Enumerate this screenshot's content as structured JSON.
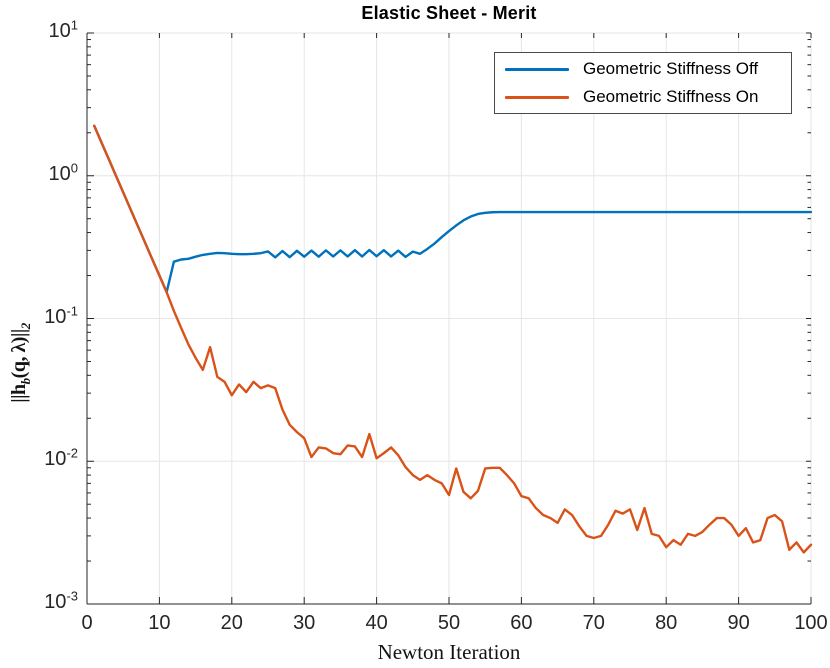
{
  "chart_data": {
    "type": "line",
    "title": "Elastic Sheet - Merit",
    "xlabel": "Newton Iteration",
    "ylabel": "||h_b(q, λ)||_2",
    "grid": true,
    "legend_position": "top-right",
    "x_axis": {
      "min": 0,
      "max": 100,
      "ticks": [
        0,
        10,
        20,
        30,
        40,
        50,
        60,
        70,
        80,
        90,
        100
      ]
    },
    "y_axis": {
      "scale": "log",
      "min": 0.001,
      "max": 10,
      "tick_exponents": [
        1,
        0,
        -1,
        -2,
        -3
      ]
    },
    "x_first": 1,
    "x_step": 1,
    "series": [
      {
        "name": "Geometric Stiffness Off",
        "color": "#0072BD",
        "values": [
          2.24,
          1.71,
          1.31,
          1.0,
          0.765,
          0.585,
          0.447,
          0.342,
          0.261,
          0.2,
          0.153,
          0.25,
          0.259,
          0.262,
          0.271,
          0.279,
          0.284,
          0.288,
          0.287,
          0.284,
          0.282,
          0.282,
          0.284,
          0.287,
          0.295,
          0.268,
          0.297,
          0.269,
          0.298,
          0.271,
          0.299,
          0.271,
          0.3,
          0.272,
          0.3,
          0.272,
          0.301,
          0.272,
          0.302,
          0.273,
          0.301,
          0.272,
          0.299,
          0.27,
          0.294,
          0.284,
          0.307,
          0.335,
          0.372,
          0.41,
          0.449,
          0.487,
          0.518,
          0.54,
          0.55,
          0.555,
          0.557,
          0.557,
          0.557,
          0.557,
          0.557,
          0.557,
          0.557,
          0.557,
          0.557,
          0.557,
          0.557,
          0.557,
          0.557,
          0.557,
          0.557,
          0.557,
          0.557,
          0.557,
          0.557,
          0.557,
          0.557,
          0.557,
          0.557,
          0.557,
          0.557,
          0.557,
          0.557,
          0.557,
          0.557,
          0.557,
          0.557,
          0.557,
          0.557,
          0.557,
          0.557,
          0.557,
          0.557,
          0.557,
          0.557,
          0.557,
          0.557,
          0.557,
          0.557,
          0.557
        ]
      },
      {
        "name": "Geometric Stiffness On",
        "color": "#D95319",
        "values": [
          2.24,
          1.71,
          1.31,
          1.0,
          0.765,
          0.585,
          0.447,
          0.342,
          0.261,
          0.2,
          0.153,
          0.113,
          0.086,
          0.066,
          0.053,
          0.0437,
          0.063,
          0.039,
          0.036,
          0.029,
          0.0345,
          0.0305,
          0.036,
          0.0325,
          0.034,
          0.0325,
          0.023,
          0.018,
          0.016,
          0.0145,
          0.0107,
          0.0125,
          0.0123,
          0.0114,
          0.0112,
          0.0129,
          0.0127,
          0.0107,
          0.0155,
          0.0105,
          0.0114,
          0.0125,
          0.011,
          0.0091,
          0.008,
          0.0074,
          0.008,
          0.0074,
          0.007,
          0.0058,
          0.0089,
          0.0061,
          0.0055,
          0.0062,
          0.0089,
          0.009,
          0.009,
          0.008,
          0.007,
          0.0057,
          0.0055,
          0.0047,
          0.0042,
          0.004,
          0.0037,
          0.0046,
          0.0042,
          0.0035,
          0.003,
          0.0029,
          0.003,
          0.0036,
          0.0045,
          0.0043,
          0.0046,
          0.0033,
          0.0047,
          0.0031,
          0.003,
          0.0025,
          0.0028,
          0.0026,
          0.0031,
          0.003,
          0.0032,
          0.0036,
          0.004,
          0.004,
          0.0036,
          0.003,
          0.0034,
          0.0027,
          0.0028,
          0.004,
          0.0042,
          0.0038,
          0.0024,
          0.0027,
          0.0023,
          0.0026
        ]
      }
    ]
  },
  "ylabel_parts": {
    "p1": "||h",
    "s1": "b",
    "p2": "(q, λ)||",
    "s2": "2"
  },
  "colors": {
    "axis": "#262626",
    "grid": "#e6e6e6",
    "tick_text": "#262626",
    "series_blue": "#0072BD",
    "series_orange": "#D95319"
  }
}
